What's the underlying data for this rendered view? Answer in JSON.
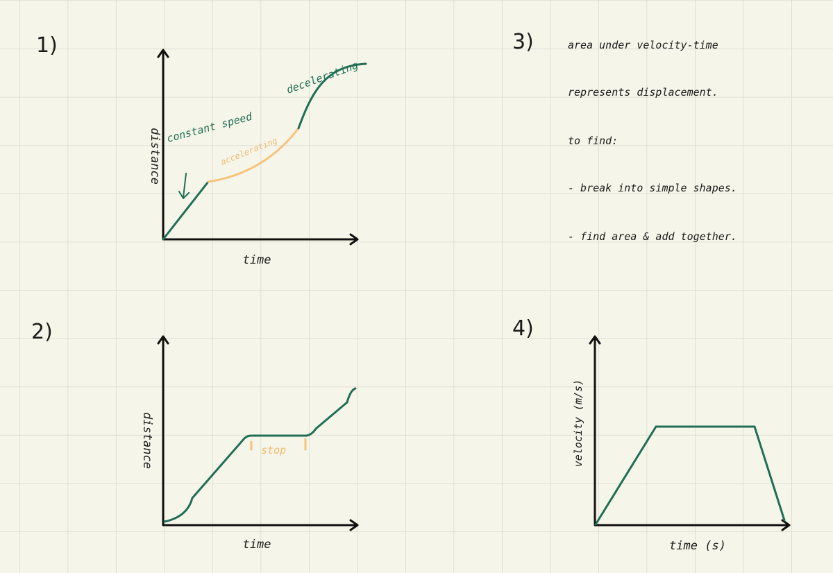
{
  "sections": [
    {
      "number": "1)",
      "y_label": "distance",
      "x_label": "time",
      "annotations": [
        "constant speed",
        "accelerating",
        "decelerating"
      ]
    },
    {
      "number": "2)",
      "y_label": "distance",
      "x_label": "time",
      "annotations": [
        "stop"
      ]
    },
    {
      "number": "3)",
      "lines": [
        "area under velocity-time",
        "represents displacement.",
        "to find:",
        "- break into simple shapes.",
        "- find area & add together."
      ]
    },
    {
      "number": "4)",
      "y_label": "velocity (m/s)",
      "x_label": "time (s)"
    }
  ]
}
